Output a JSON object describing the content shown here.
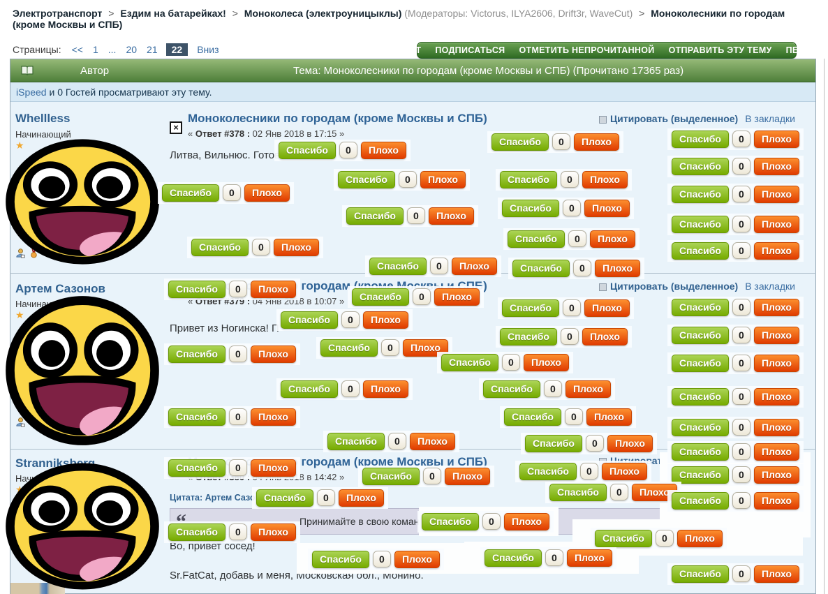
{
  "breadcrumb": {
    "separator": ">",
    "items": [
      "Электротранспорт",
      "Ездим на батарейках!",
      "Моноколеса (электроуницыклы)"
    ],
    "moderators": "(Модераторы: Victorus, ILYA2606, Drift3r, WaveCut)",
    "current": "Моноколесники по городам (кроме Москвы и СПБ)"
  },
  "pagination": {
    "label": "Страницы:",
    "links": [
      "<<",
      "1",
      "...",
      "20",
      "21"
    ],
    "current_page": "22",
    "down_label": "Вниз"
  },
  "topic_actions": [
    "ОТВЕТ",
    "ПОДПИСАТЬСЯ",
    "ОТМЕТИТЬ НЕПРОЧИТАННОЙ",
    "ОТПРАВИТЬ ЭТУ ТЕМУ",
    "ПЕЧАТЬ"
  ],
  "table_header": {
    "author_col": "Автор",
    "topic_col": "Тема: Моноколесники по городам (кроме Москвы и СПБ)  (Прочитано 17365 раз)"
  },
  "viewing": {
    "user": "iSpeed",
    "text": " и 0 Гостей просматривают эту тему."
  },
  "misc": {
    "meta_open": "« "
  },
  "rating": {
    "thanks_label": "Спасибо",
    "bad_label": "Плохо",
    "count": "0"
  },
  "post_links": {
    "quote": "Цитировать (выделенное)",
    "bookmark": "В закладки"
  },
  "posts": [
    {
      "author": "Whellless",
      "rank": "Начинающий",
      "stars": "★",
      "title": "Моноколесники по городам (кроме Москвы и СПБ)",
      "reply_meta_bold": "Ответ #378 :",
      "reply_meta": " 02 Янв 2018 в 17:15 »",
      "body": "Литва, Вильнюс. Готов"
    },
    {
      "author": "Артем Сазонов",
      "rank": "Начинающий",
      "stars": "★",
      "title": "Моноколесники по городам (кроме Москвы и СПБ)",
      "reply_meta_bold": "Ответ #379 :",
      "reply_meta": " 04 Янв 2018 в 10:07 »",
      "body": "Привет из Ногинска! П"
    },
    {
      "author": "Stranniksberg",
      "rank": "Начинающий",
      "stars": "★",
      "title": "Моноколесники по городам (кроме Москвы и СПБ)",
      "reply_meta_bold": "Ответ #380 :",
      "reply_meta": " 04 Янв 2018 в 14:42 »",
      "quote_header": "Цитата: Артем Сазонов",
      "quote_mark": "“",
      "quote_text": "Принимайте в свою команду",
      "body_line1": "Во, привет сосед!",
      "body_line2": "Sr.FatCat, добавь и меня, Московская обл., Монино."
    }
  ],
  "colors": {
    "thanks_green": "#76AB00",
    "bad_orange": "#E8430A",
    "header_green": "#5E8F4C",
    "link_blue": "#3A6DA2",
    "post_bg": "#E9F3FA",
    "quote_bg": "#DADAE8"
  }
}
